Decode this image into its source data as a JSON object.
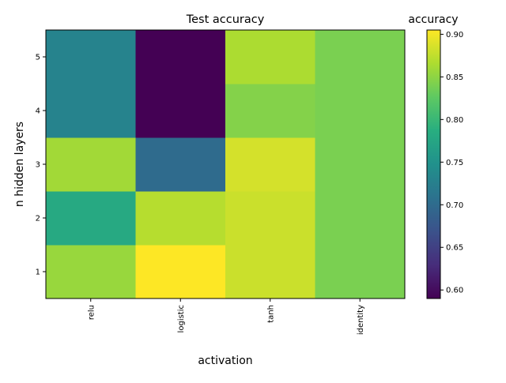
{
  "chart_data": {
    "type": "heatmap",
    "title": "Test accuracy",
    "xlabel": "activation",
    "ylabel": "n hidden layers",
    "x_categories": [
      "relu",
      "logistic",
      "tanh",
      "identity"
    ],
    "y_categories": [
      "1",
      "2",
      "3",
      "4",
      "5"
    ],
    "values": [
      [
        0.855,
        0.905,
        0.88,
        0.84
      ],
      [
        0.78,
        0.87,
        0.88,
        0.84
      ],
      [
        0.86,
        0.7,
        0.885,
        0.84
      ],
      [
        0.73,
        0.59,
        0.845,
        0.84
      ],
      [
        0.73,
        0.59,
        0.865,
        0.84
      ]
    ],
    "colorbar": {
      "label": "accuracy",
      "vmin": 0.59,
      "vmax": 0.905,
      "ticks": [
        0.6,
        0.65,
        0.7,
        0.75,
        0.8,
        0.85,
        0.9
      ],
      "tick_labels": [
        "0.60",
        "0.65",
        "0.70",
        "0.75",
        "0.80",
        "0.85",
        "0.90"
      ]
    },
    "colormap": "viridis",
    "grid": false,
    "legend": "none"
  }
}
